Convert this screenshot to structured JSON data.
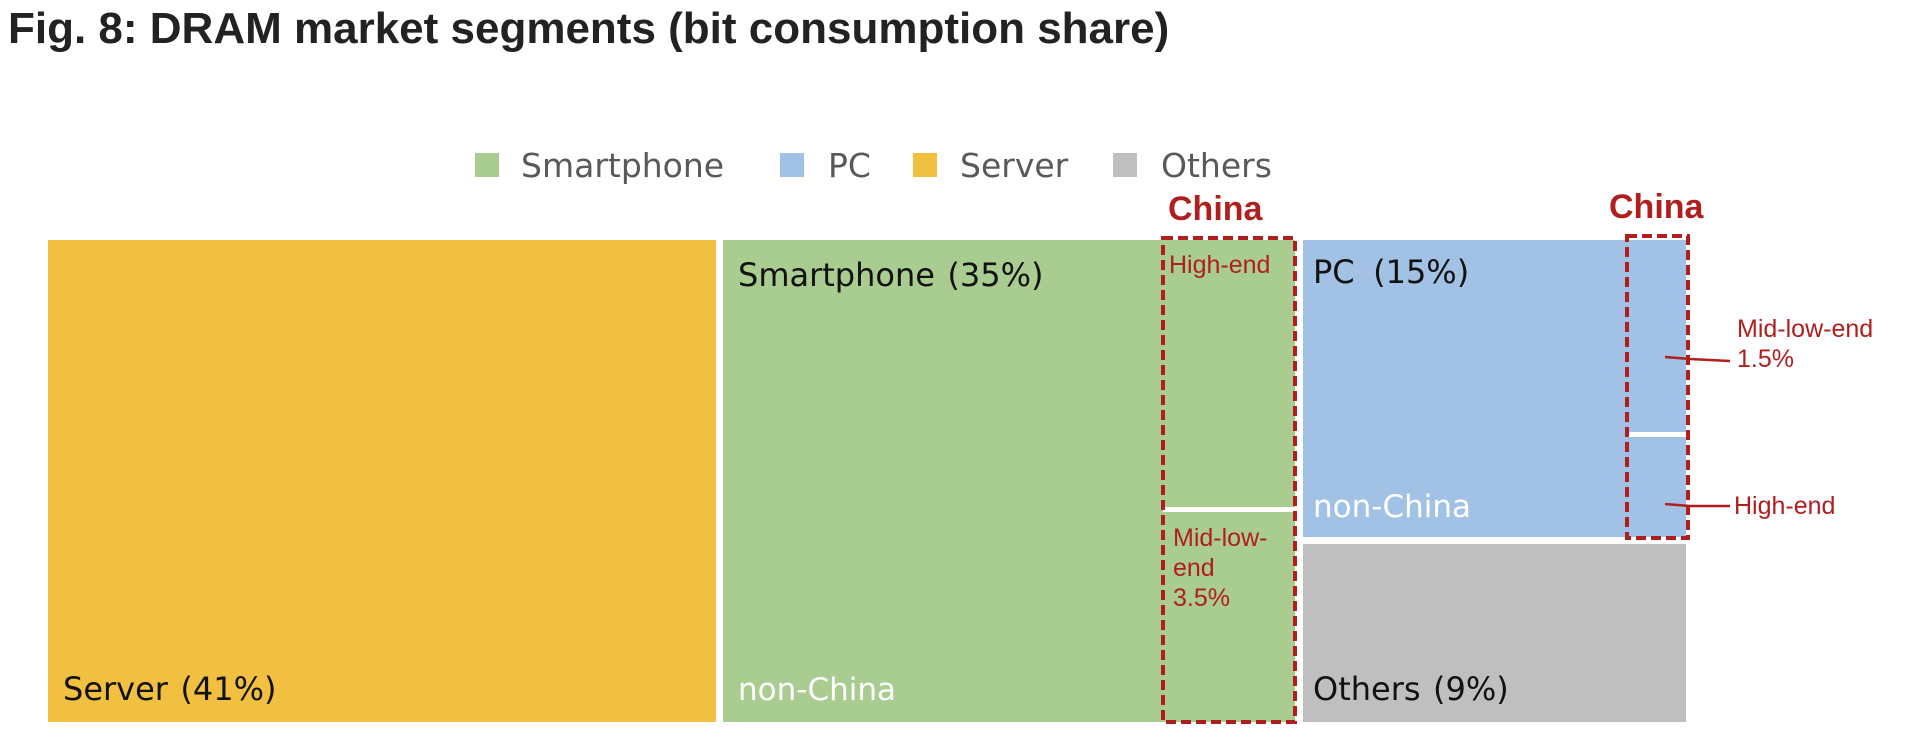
{
  "title": "Fig. 8: DRAM market segments (bit consumption share)",
  "chart_data": {
    "type": "treemap",
    "unit": "%",
    "legend": {
      "placement": "top",
      "entries": [
        {
          "name": "Smartphone",
          "color": "#a9cd91"
        },
        {
          "name": "PC",
          "color": "#a2c2e5"
        },
        {
          "name": "Server",
          "color": "#f2c040"
        },
        {
          "name": "Others",
          "color": "#bfbfbf"
        }
      ]
    },
    "segments": [
      {
        "name": "Server",
        "share": 41,
        "share_label": "(41%)",
        "color": "#f2c040"
      },
      {
        "name": "Smartphone",
        "share": 35,
        "share_label": "(35%)",
        "color": "#a9cd91",
        "non_china_label": "non-China",
        "china": {
          "label": "China",
          "parts": [
            {
              "label": "High-end"
            },
            {
              "label": "Mid-low-end",
              "share": 3.5,
              "share_label": "3.5%"
            }
          ]
        }
      },
      {
        "name": "PC",
        "share": 15,
        "share_label": "(15%)",
        "color": "#a2c2e5",
        "non_china_label": "non-China",
        "china": {
          "label": "China",
          "parts": [
            {
              "label": "Mid-low-end",
              "share": 1.5,
              "share_label": "1.5%"
            },
            {
              "label": "High-end"
            }
          ]
        }
      },
      {
        "name": "Others",
        "share": 9,
        "share_label": "(9%)",
        "color": "#bfbfbf"
      }
    ],
    "annotations": {
      "smartphone_china_midlow": [
        "Mid-low-",
        "end",
        "3.5%"
      ],
      "pc_china_midlow": [
        "Mid-low-end",
        "1.5%"
      ]
    }
  }
}
